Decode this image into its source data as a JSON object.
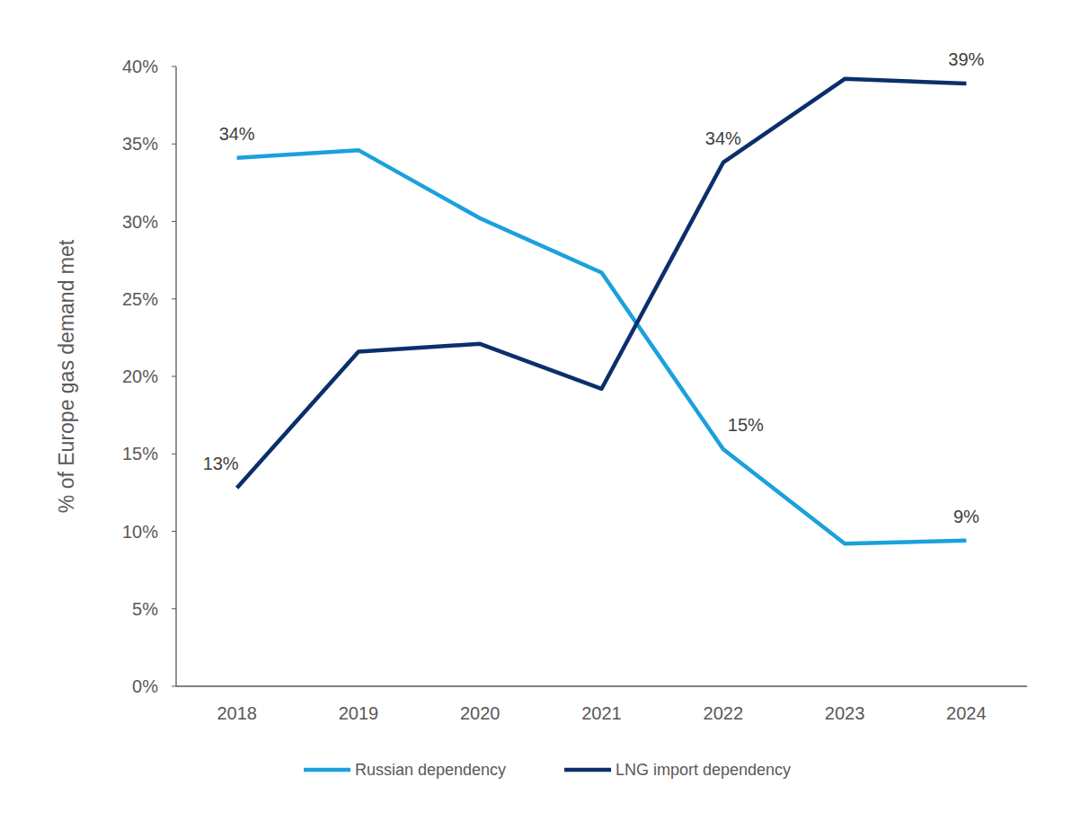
{
  "chart_data": {
    "type": "line",
    "y_label": "% of Europe gas demand met",
    "categories": [
      "2018",
      "2019",
      "2020",
      "2021",
      "2022",
      "2023",
      "2024"
    ],
    "series": [
      {
        "name": "Russian dependency",
        "color": "#1ba1dc",
        "values": [
          34.1,
          34.6,
          30.2,
          26.7,
          15.3,
          9.2,
          9.4
        ],
        "value_labels": [
          "34%",
          null,
          null,
          null,
          "15%",
          null,
          "9%"
        ]
      },
      {
        "name": "LNG import dependency",
        "color": "#0b2f6b",
        "values": [
          12.8,
          21.6,
          22.1,
          19.2,
          33.8,
          39.2,
          38.9
        ],
        "value_labels": [
          "13%",
          null,
          null,
          null,
          "34%",
          null,
          "39%"
        ]
      }
    ],
    "ylim": [
      0,
      40
    ],
    "yticks": [
      {
        "value": 0,
        "label": "0%"
      },
      {
        "value": 5,
        "label": "5%"
      },
      {
        "value": 10,
        "label": "10%"
      },
      {
        "value": 15,
        "label": "15%"
      },
      {
        "value": 20,
        "label": "20%"
      },
      {
        "value": 25,
        "label": "25%"
      },
      {
        "value": 30,
        "label": "30%"
      },
      {
        "value": 35,
        "label": "35%"
      },
      {
        "value": 40,
        "label": "40%"
      }
    ],
    "grid": false,
    "legend": "bottom",
    "data_labels": true
  }
}
